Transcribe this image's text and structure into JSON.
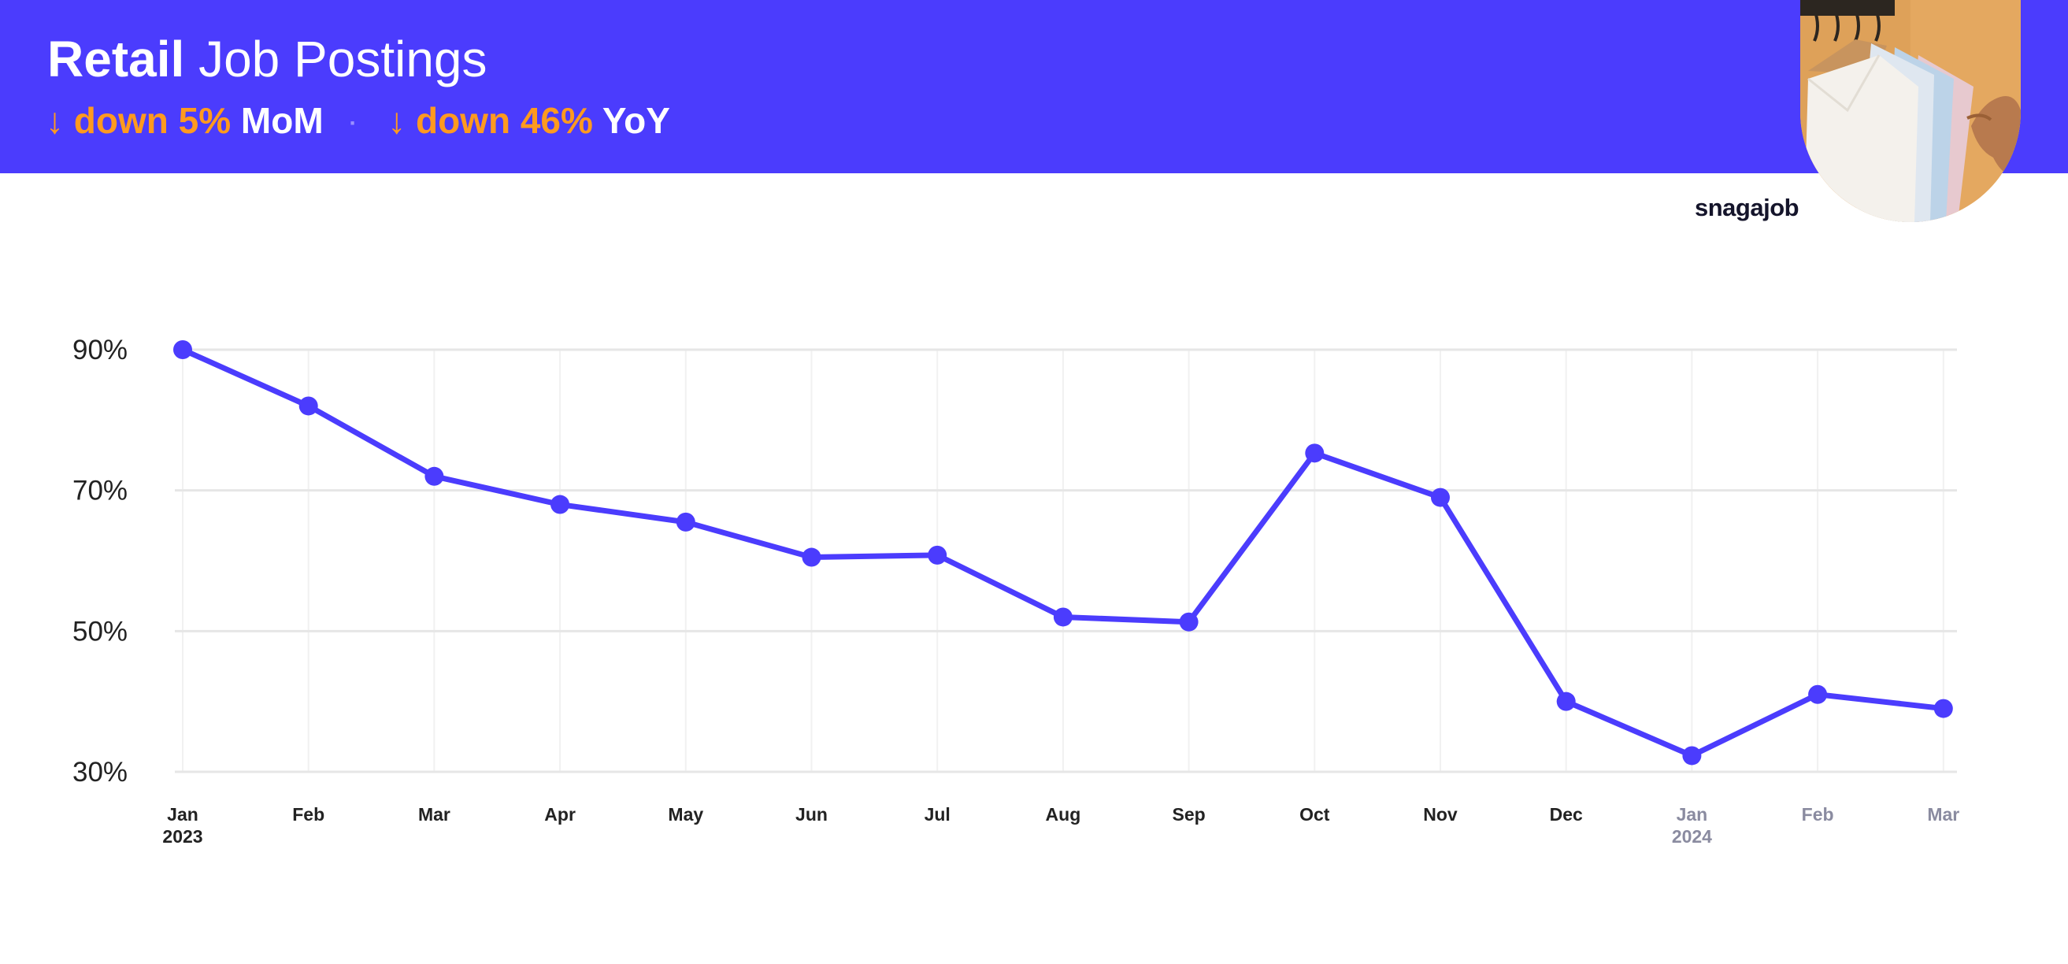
{
  "header": {
    "title_strong": "Retail",
    "title_rest": " Job Postings",
    "mom": {
      "arrow": "↓",
      "value": "down 5%",
      "label": " MoM"
    },
    "separator": "·",
    "yoy": {
      "arrow": "↓",
      "value": "down 46%",
      "label": " YoY"
    }
  },
  "brand": "snagajob",
  "colors": {
    "accent": "#4b3cfd",
    "highlight": "#ff9a1f",
    "grid": "#e6e6e6",
    "tick": "#222222",
    "tick_muted": "#8a8ba0"
  },
  "chart_data": {
    "type": "line",
    "title": "",
    "xlabel": "",
    "ylabel": "",
    "categories": [
      "Jan",
      "Feb",
      "Mar",
      "Apr",
      "May",
      "Jun",
      "Jul",
      "Aug",
      "Sep",
      "Oct",
      "Nov",
      "Dec",
      "Jan",
      "Feb",
      "Mar"
    ],
    "year_labels": [
      "2023",
      "",
      "",
      "",
      "",
      "",
      "",
      "",
      "",
      "",
      "",
      "",
      "2024",
      "",
      ""
    ],
    "muted_from_index": 12,
    "series": [
      {
        "values": [
          90,
          82,
          72,
          68,
          65.5,
          60.5,
          60.8,
          52,
          51.3,
          75.3,
          69,
          40,
          32.3,
          41,
          39
        ]
      }
    ],
    "ylim": [
      30,
      90
    ],
    "yticks": [
      30,
      50,
      70,
      90
    ],
    "ytick_labels": [
      "30%",
      "50%",
      "70%",
      "90%"
    ],
    "grid": true
  }
}
